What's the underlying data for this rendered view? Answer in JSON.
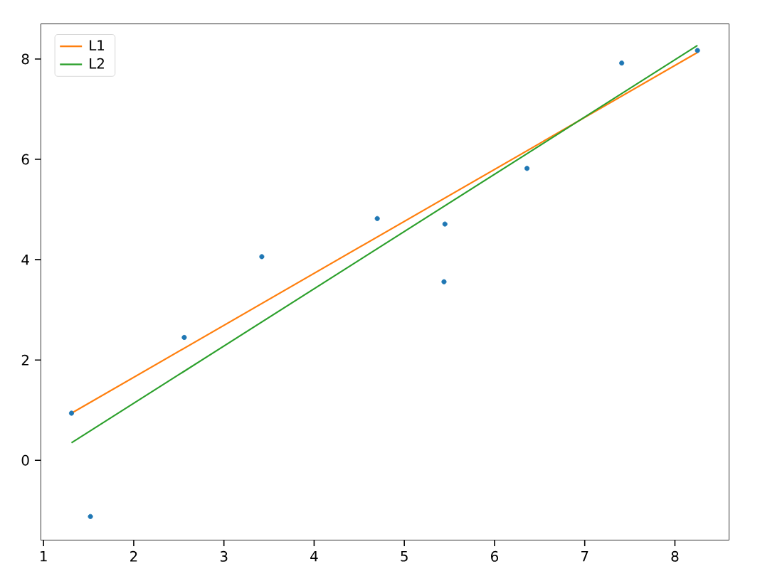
{
  "chart_data": {
    "type": "scatter",
    "xlim": [
      0.97,
      8.6
    ],
    "ylim": [
      -1.59,
      8.7
    ],
    "xticks": [
      1,
      2,
      3,
      4,
      5,
      6,
      7,
      8
    ],
    "yticks": [
      0,
      2,
      4,
      6,
      8
    ],
    "legend": "top left",
    "grid": false,
    "series": [
      {
        "color": "#1f77b4",
        "marker": "circle",
        "x": [
          1.31,
          1.52,
          2.56,
          3.42,
          4.7,
          5.45,
          5.44,
          6.36,
          7.41,
          8.25
        ],
        "values": [
          0.94,
          -1.12,
          2.45,
          4.06,
          4.82,
          4.71,
          3.56,
          5.82,
          7.92,
          8.17
        ]
      },
      {
        "type": "line",
        "name": "L1",
        "color": "#ff7f0e",
        "x": [
          1.31,
          8.25
        ],
        "values": [
          0.94,
          8.13
        ]
      },
      {
        "type": "line",
        "name": "L2",
        "color": "#2ca02c",
        "x": [
          1.31,
          8.25
        ],
        "values": [
          0.35,
          8.27
        ]
      }
    ]
  }
}
